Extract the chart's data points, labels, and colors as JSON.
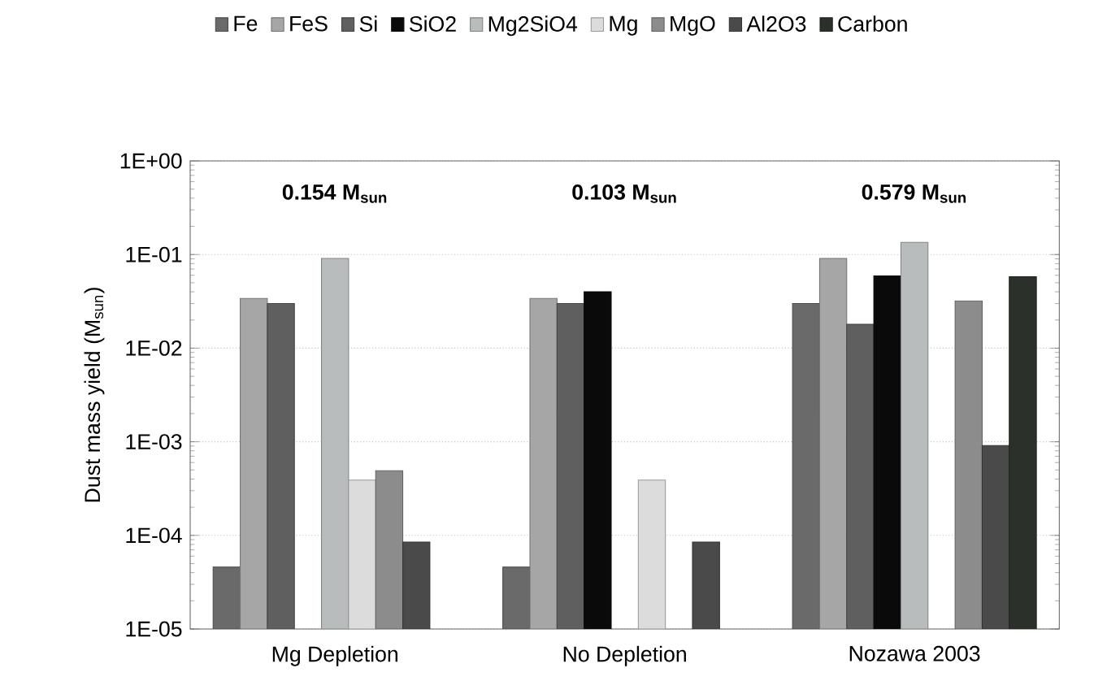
{
  "chart_data": {
    "type": "bar",
    "ylabel": "Dust mass yield (M$_{sun}$)",
    "categories": [
      "Mg Depletion",
      "No Depletion",
      "Nozawa 2003"
    ],
    "series": [
      {
        "name": "Fe",
        "color": "#6a6a6a",
        "values": [
          4.6e-05,
          4.6e-05,
          0.03
        ]
      },
      {
        "name": "FeS",
        "color": "#a6a6a6",
        "values": [
          0.034,
          0.034,
          0.091
        ]
      },
      {
        "name": "Si",
        "color": "#5f5f5f",
        "values": [
          0.03,
          0.03,
          0.018
        ]
      },
      {
        "name": "SiO2",
        "color": "#0a0a0a",
        "values": [
          null,
          0.04,
          0.059
        ]
      },
      {
        "name": "Mg2SiO4",
        "color": "#b8bcbc",
        "values": [
          0.091,
          null,
          0.135
        ]
      },
      {
        "name": "Mg",
        "color": "#dcdcdc",
        "values": [
          0.00039,
          0.00039,
          null
        ]
      },
      {
        "name": "MgO",
        "color": "#8c8c8c",
        "values": [
          0.00049,
          null,
          0.032
        ]
      },
      {
        "name": "Al2O3",
        "color": "#4a4a4a",
        "values": [
          8.5e-05,
          8.5e-05,
          0.00091
        ]
      },
      {
        "name": "Carbon",
        "color": "#2b302b",
        "values": [
          null,
          null,
          0.058
        ]
      }
    ],
    "log": "y",
    "ylim": [
      1e-05,
      1
    ],
    "yticks": [
      {
        "value": 1e-05,
        "label": "1E-05"
      },
      {
        "value": 0.0001,
        "label": "1E-04"
      },
      {
        "value": 0.001,
        "label": "1E-03"
      },
      {
        "value": 0.01,
        "label": "1E-02"
      },
      {
        "value": 0.1,
        "label": "1E-01"
      },
      {
        "value": 1,
        "label": "1E+00"
      }
    ],
    "grid": "y",
    "legend": "top",
    "annotations": [
      "**0.154 M$_{sun}$**",
      "**0.103 M$_{sun}$**",
      "**0.579 M$_{sun}$**"
    ]
  }
}
